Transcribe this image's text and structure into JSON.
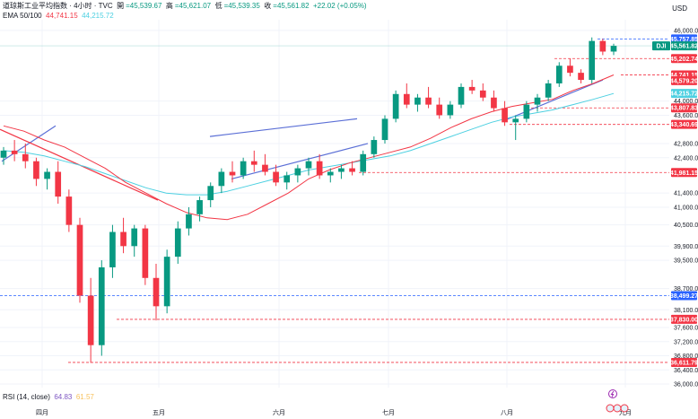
{
  "header": {
    "symbol_line": "道琼斯工业平均指数 · 4小时 · TVC",
    "open_label": "開",
    "open_value": "=45,539.67",
    "high_label": "高",
    "high_value": "=45,621.07",
    "low_label": "低",
    "low_value": "=45,539.35",
    "close_label": "收",
    "close_value": "=45,561.82",
    "change": "+22.02 (+0.05%)",
    "ema_label": "EMA 50/100",
    "ema50_value": "44,741.15",
    "ema100_value": "44,215.72"
  },
  "currency": "USD",
  "rsi": {
    "label": "RSI (14, close)",
    "value1": "64.83",
    "value2": "61.57"
  },
  "colors": {
    "up": "#089981",
    "down": "#f23645",
    "ema50": "#f23645",
    "ema100": "#4dd0e1",
    "trendline": "#5b6fd6",
    "blue_level": "#2962ff"
  },
  "chart_data": {
    "type": "candlestick",
    "title": "道琼斯工业平均指数 · 4小时 · TVC",
    "x_tick_labels": [
      "四月",
      "五月",
      "六月",
      "七月",
      "八月",
      "九月"
    ],
    "y_tick_labels": [
      "46,000.00",
      "44,000.00",
      "43,600.00",
      "42,800.00",
      "42,400.00",
      "41,400.00",
      "41,000.00",
      "40,500.00",
      "39,900.00",
      "39,500.00",
      "38,700.00",
      "38,100.00",
      "37,600.00",
      "37,200.00",
      "36,800.00",
      "36,400.00",
      "36,000.00"
    ],
    "ylim": [
      35900,
      46300
    ],
    "price_tags": [
      {
        "label": "45,757.85",
        "value": 45757.85,
        "color": "#2962ff"
      },
      {
        "label": "DJI",
        "value": 45561.82,
        "color": "#089981"
      },
      {
        "label": "45,561.82",
        "value": 45561.82,
        "color": "#089981"
      },
      {
        "label": "45,202.74",
        "value": 45202.74,
        "color": "#f23645"
      },
      {
        "label": "44,741.15",
        "value": 44741.15,
        "color": "#f23645"
      },
      {
        "label": "44,579.20",
        "value": 44579.2,
        "color": "#f23645"
      },
      {
        "label": "44,215.72",
        "value": 44215.72,
        "color": "#4dd0e1"
      },
      {
        "label": "43,807.83",
        "value": 43807.83,
        "color": "#f23645"
      },
      {
        "label": "43,340.69",
        "value": 43340.69,
        "color": "#f23645"
      },
      {
        "label": "41,981.15",
        "value": 41981.15,
        "color": "#f23645"
      },
      {
        "label": "38,499.27",
        "value": 38499.27,
        "color": "#2962ff"
      },
      {
        "label": "37,830.00",
        "value": 37830.0,
        "color": "#f23645"
      },
      {
        "label": "36,611.79",
        "value": 36611.79,
        "color": "#f23645"
      }
    ],
    "ema50": [
      43300,
      43150,
      42900,
      42700,
      42400,
      42100,
      41700,
      41400,
      41100,
      40850,
      40700,
      40650,
      40800,
      41100,
      41400,
      41800,
      42050,
      42250,
      42400,
      42550,
      42700,
      42950,
      43250,
      43500,
      43700,
      43850,
      43950,
      44050,
      44300,
      44500,
      44741
    ],
    "ema100": [
      42600,
      42550,
      42450,
      42300,
      42150,
      41950,
      41750,
      41550,
      41400,
      41350,
      41350,
      41450,
      41600,
      41750,
      41900,
      42050,
      42150,
      42250,
      42350,
      42450,
      42600,
      42800,
      43000,
      43200,
      43400,
      43550,
      43650,
      43750,
      43900,
      44050,
      44216
    ],
    "series": [
      {
        "name": "DJI",
        "ohlc": [
          [
            42400,
            42700,
            42200,
            42600
          ],
          [
            42600,
            42900,
            42300,
            42500
          ],
          [
            42500,
            42800,
            42100,
            42300
          ],
          [
            42300,
            42400,
            41600,
            41800
          ],
          [
            41800,
            42100,
            41500,
            42000
          ],
          [
            42000,
            42300,
            41100,
            41300
          ],
          [
            41300,
            41500,
            40300,
            40500
          ],
          [
            40500,
            40700,
            38300,
            38500
          ],
          [
            38500,
            39000,
            36600,
            37100
          ],
          [
            37100,
            39500,
            36800,
            39300
          ],
          [
            39300,
            40500,
            39000,
            40300
          ],
          [
            40300,
            40700,
            39700,
            39900
          ],
          [
            39900,
            40500,
            39600,
            40400
          ],
          [
            40400,
            40500,
            38800,
            39000
          ],
          [
            39000,
            39400,
            37800,
            38200
          ],
          [
            38200,
            39800,
            38000,
            39600
          ],
          [
            39600,
            40600,
            39400,
            40400
          ],
          [
            40400,
            41000,
            40200,
            40800
          ],
          [
            40800,
            41300,
            40600,
            41200
          ],
          [
            41200,
            41700,
            41000,
            41600
          ],
          [
            41600,
            42100,
            41400,
            42000
          ],
          [
            42000,
            42300,
            41700,
            41900
          ],
          [
            41900,
            42400,
            41800,
            42300
          ],
          [
            42300,
            42600,
            42000,
            42200
          ],
          [
            42200,
            42500,
            41900,
            42000
          ],
          [
            42000,
            42200,
            41600,
            41700
          ],
          [
            41700,
            42000,
            41500,
            41900
          ],
          [
            41900,
            42200,
            41700,
            42100
          ],
          [
            42100,
            42400,
            41900,
            42300
          ],
          [
            42300,
            42500,
            41800,
            41900
          ],
          [
            41900,
            42100,
            41700,
            42000
          ],
          [
            42000,
            42200,
            41800,
            42100
          ],
          [
            42100,
            42300,
            41900,
            42000
          ],
          [
            42000,
            42600,
            41900,
            42500
          ],
          [
            42500,
            43000,
            42400,
            42900
          ],
          [
            42900,
            43600,
            42800,
            43500
          ],
          [
            43500,
            44300,
            43400,
            44200
          ],
          [
            44200,
            44500,
            43800,
            43900
          ],
          [
            43900,
            44200,
            43700,
            44100
          ],
          [
            44100,
            44400,
            43800,
            43900
          ],
          [
            43900,
            44100,
            43500,
            43600
          ],
          [
            43600,
            44000,
            43500,
            43900
          ],
          [
            43900,
            44500,
            43800,
            44400
          ],
          [
            44400,
            44600,
            44200,
            44300
          ],
          [
            44300,
            44500,
            44000,
            44100
          ],
          [
            44100,
            44300,
            43700,
            43800
          ],
          [
            43800,
            44000,
            43300,
            43400
          ],
          [
            43400,
            43600,
            42900,
            43500
          ],
          [
            43500,
            44000,
            43400,
            43900
          ],
          [
            43900,
            44200,
            43700,
            44100
          ],
          [
            44100,
            44600,
            44000,
            44500
          ],
          [
            44500,
            45100,
            44400,
            45000
          ],
          [
            45000,
            45200,
            44700,
            44800
          ],
          [
            44800,
            44900,
            44500,
            44600
          ],
          [
            44600,
            45800,
            44500,
            45700
          ],
          [
            45700,
            45760,
            45300,
            45400
          ],
          [
            45400,
            45621,
            45300,
            45562
          ]
        ]
      }
    ]
  }
}
